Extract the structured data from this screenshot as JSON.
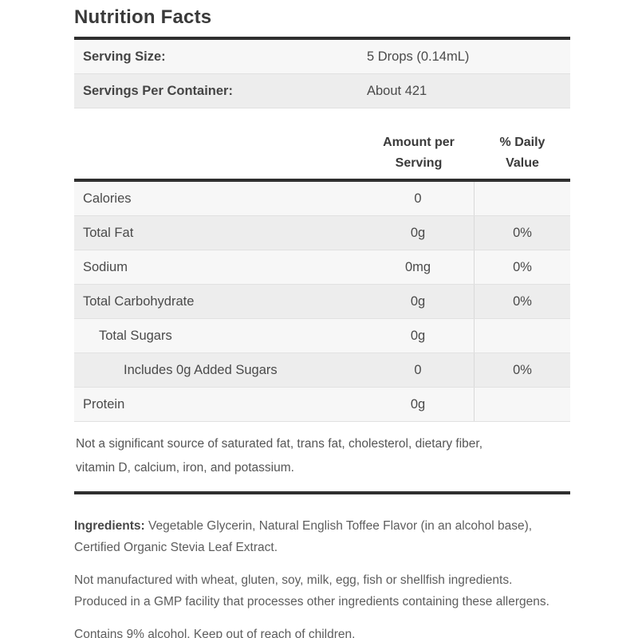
{
  "label": {
    "title": "Nutrition Facts",
    "serving_rows": [
      {
        "label": "Serving Size:",
        "value": "5 Drops (0.14mL)"
      },
      {
        "label": "Servings Per Container:",
        "value": "About 421"
      }
    ],
    "columns": {
      "amount_header": "Amount per\nServing",
      "dv_header": "% Daily\nValue"
    },
    "nutrients": [
      {
        "name": "Calories",
        "amount": "0",
        "dv": "",
        "indent": 0
      },
      {
        "name": "Total Fat",
        "amount": "0g",
        "dv": "0%",
        "indent": 0
      },
      {
        "name": "Sodium",
        "amount": "0mg",
        "dv": "0%",
        "indent": 0
      },
      {
        "name": "Total Carbohydrate",
        "amount": "0g",
        "dv": "0%",
        "indent": 0
      },
      {
        "name": "Total Sugars",
        "amount": "0g",
        "dv": "",
        "indent": 1
      },
      {
        "name": "Includes 0g Added Sugars",
        "amount": "0",
        "dv": "0%",
        "indent": 2
      },
      {
        "name": "Protein",
        "amount": "0g",
        "dv": "",
        "indent": 0
      }
    ],
    "footnote": "Not a significant source of saturated fat, trans fat, cholesterol, dietary fiber,\nvitamin D, calcium, iron, and potassium.",
    "ingredients_label": "Ingredients:",
    "ingredients_text": "Vegetable Glycerin, Natural English Toffee Flavor (in an alcohol base),\nCertified Organic Stevia Leaf Extract.",
    "allergen_text": "Not manufactured with wheat, gluten, soy, milk, egg, fish or shellfish ingredients.\nProduced in a GMP facility that processes other ingredients containing these allergens.",
    "alcohol_text": "Contains 9% alcohol. Keep out of reach of children.",
    "colors": {
      "rule": "#2f2f2f",
      "title_text": "#3a3a3a",
      "row_light": "#f7f7f7",
      "row_dark": "#ededed"
    }
  }
}
